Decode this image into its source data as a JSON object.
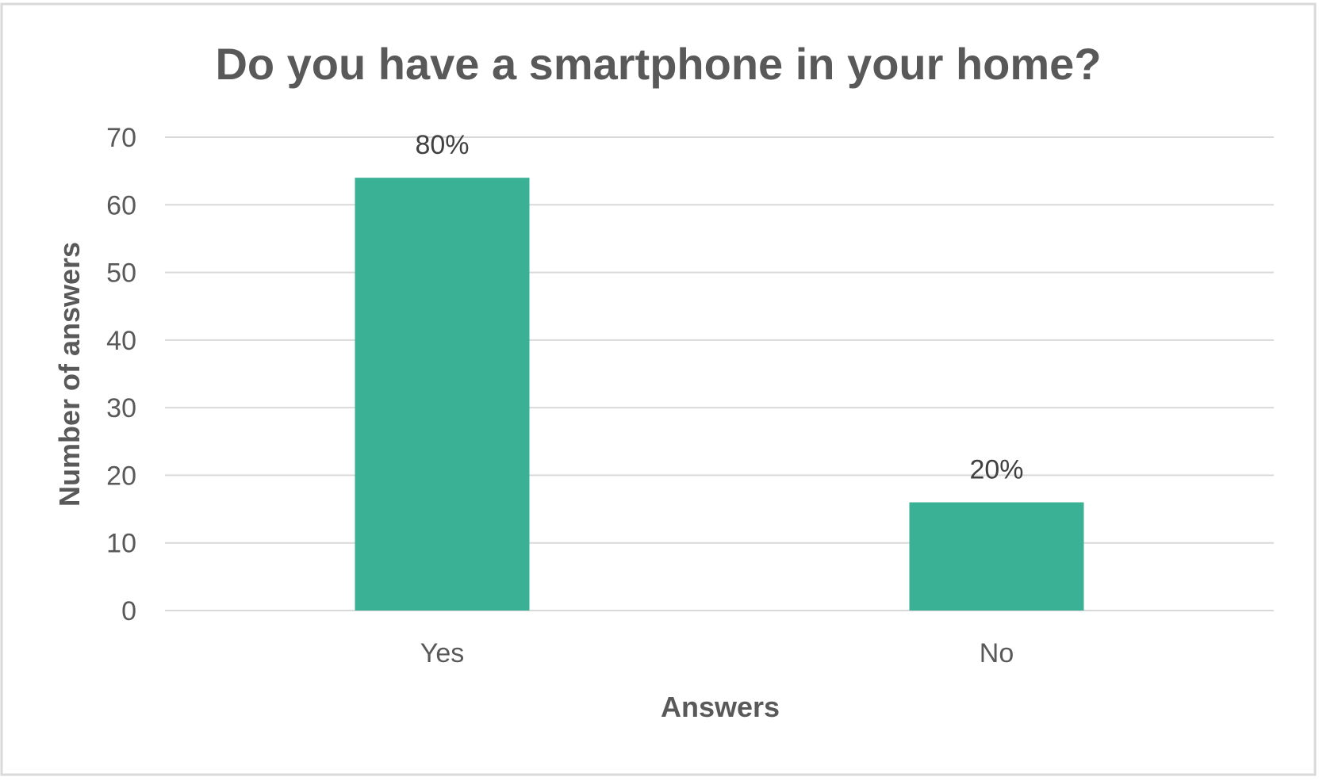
{
  "chart_data": {
    "type": "bar",
    "title": "Do you have a smartphone in your home?",
    "xlabel": "Answers",
    "ylabel": "Number of answers",
    "categories": [
      "Yes",
      "No"
    ],
    "values": [
      64,
      16
    ],
    "data_labels": [
      "80%",
      "20%"
    ],
    "ylim": [
      0,
      70
    ],
    "yticks": [
      "0",
      "10",
      "20",
      "30",
      "40",
      "50",
      "60",
      "70"
    ],
    "ytick_values": [
      0,
      10,
      20,
      30,
      40,
      50,
      60,
      70
    ],
    "grid": true,
    "legend": "none",
    "colors": {
      "bar": "#3AB094",
      "frame": "#d9d9d9",
      "grid": "#d9d9d9",
      "text": "#595959"
    }
  }
}
